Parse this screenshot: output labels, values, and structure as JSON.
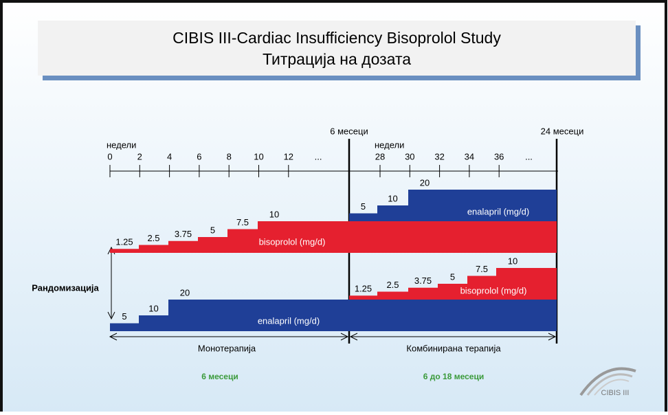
{
  "title": [
    "CIBIS III-Cardiac Insufficiency Bisoprolol Study",
    "Титрација на дозата"
  ],
  "timeline": {
    "weeks_label": "недели",
    "weeks_left": [
      0,
      2,
      4,
      6,
      8,
      10,
      12,
      "..."
    ],
    "weeks_right": [
      28,
      30,
      32,
      34,
      36,
      "..."
    ],
    "marker_6": "6 месеци",
    "marker_24": "24 месеци"
  },
  "steps": [
    {
      "name": "bisoprolol (mg/d)",
      "doses": [
        1.25,
        2.5,
        3.75,
        5,
        7.5,
        10
      ]
    },
    {
      "name": "enalapril  (mg/d)",
      "doses": [
        5,
        10,
        20
      ]
    },
    {
      "name": "enalapril  (mg/d)",
      "doses": [
        5,
        10,
        20
      ]
    },
    {
      "name": "bisoprolol  (mg/d)",
      "doses": [
        1.25,
        2.5,
        3.75,
        5,
        7.5,
        10
      ]
    }
  ],
  "randomization": "Рандомизација",
  "phases": [
    "Монотерапија",
    "Комбинирана терапија"
  ],
  "durations": [
    "6 месеци",
    "6 до 18 месеци"
  ],
  "logo": "CIBIS III"
}
